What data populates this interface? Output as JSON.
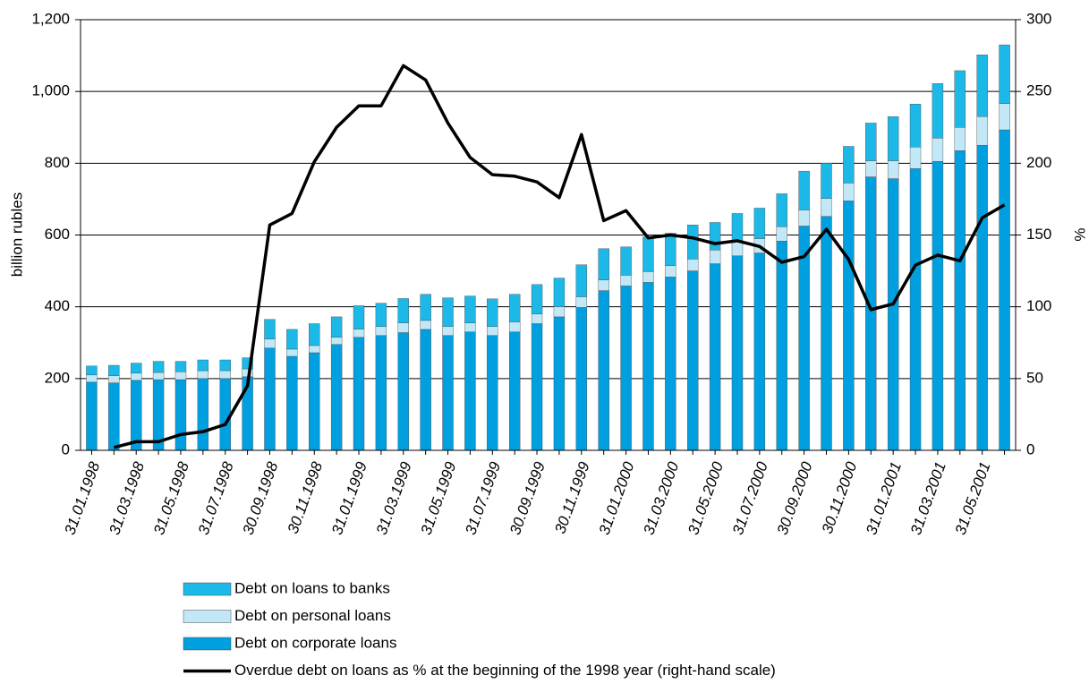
{
  "chart_data": {
    "type": "bar",
    "y_label": "billion rubles",
    "y2_label": "%",
    "categories": [
      "31.01.1998",
      null,
      "31.03.1998",
      null,
      "31.05.1998",
      null,
      "31.07.1998",
      null,
      "30.09.1998",
      null,
      "30.11.1998",
      null,
      "31.01.1999",
      null,
      "31.03.1999",
      null,
      "31.05.1999",
      null,
      "31.07.1999",
      null,
      "30.09.1999",
      null,
      "30.11.1999",
      null,
      "31.01.2000",
      null,
      "31.03.2000",
      null,
      "31.05.2000",
      null,
      "31.07.2000",
      null,
      "30.09.2000",
      null,
      "30.11.2000",
      null,
      "31.01.2001",
      null,
      "31.03.2001",
      null,
      "31.05.2001",
      null
    ],
    "series": [
      {
        "name": "Debt on corporate loans",
        "color": "#009fdf",
        "values": [
          190,
          188,
          195,
          197,
          197,
          200,
          200,
          205,
          285,
          262,
          272,
          295,
          315,
          320,
          328,
          337,
          320,
          330,
          320,
          330,
          353,
          372,
          398,
          445,
          458,
          468,
          483,
          500,
          520,
          542,
          550,
          583,
          625,
          652,
          695,
          762,
          757,
          785,
          805,
          835,
          850,
          893
        ]
      },
      {
        "name": "Debt on personal loans",
        "color": "#c2e8f7",
        "values": [
          20,
          20,
          20,
          20,
          22,
          22,
          22,
          22,
          25,
          20,
          20,
          20,
          23,
          25,
          27,
          25,
          25,
          25,
          25,
          28,
          27,
          28,
          30,
          30,
          30,
          30,
          32,
          33,
          38,
          40,
          40,
          40,
          45,
          50,
          50,
          45,
          50,
          60,
          65,
          65,
          80,
          73
        ]
      },
      {
        "name": "Debt on loans to banks",
        "color": "#1cb9e8",
        "values": [
          25,
          29,
          28,
          31,
          29,
          30,
          30,
          31,
          55,
          55,
          61,
          57,
          65,
          65,
          68,
          73,
          80,
          75,
          77,
          77,
          82,
          80,
          89,
          87,
          79,
          97,
          90,
          95,
          77,
          78,
          85,
          92,
          108,
          98,
          102,
          105,
          123,
          120,
          152,
          158,
          172,
          164
        ]
      },
      {
        "name": "Overdue debt on loans as % at the beginning of the 1998 year (right-hand scale)",
        "color": "#000000",
        "axis": "y2",
        "values": [
          null,
          2,
          6,
          6,
          11,
          13,
          18,
          45,
          157,
          165,
          201,
          225,
          240,
          240,
          268,
          258,
          228,
          204,
          192,
          191,
          187,
          176,
          220,
          160,
          167,
          148,
          150,
          148,
          144,
          146,
          142,
          131,
          135,
          154,
          133,
          98,
          102,
          129,
          136,
          132,
          162,
          171
        ]
      }
    ],
    "ylim": [
      0,
      1200
    ],
    "yticks": [
      0,
      200,
      400,
      600,
      800,
      {
        "value": 1000,
        "label": "1,000"
      },
      {
        "value": 1200,
        "label": "1,200"
      }
    ],
    "y2lim": [
      0,
      300
    ],
    "y2ticks": [
      0,
      50,
      100,
      150,
      200,
      250,
      300
    ],
    "stacked": true,
    "grid": true
  }
}
